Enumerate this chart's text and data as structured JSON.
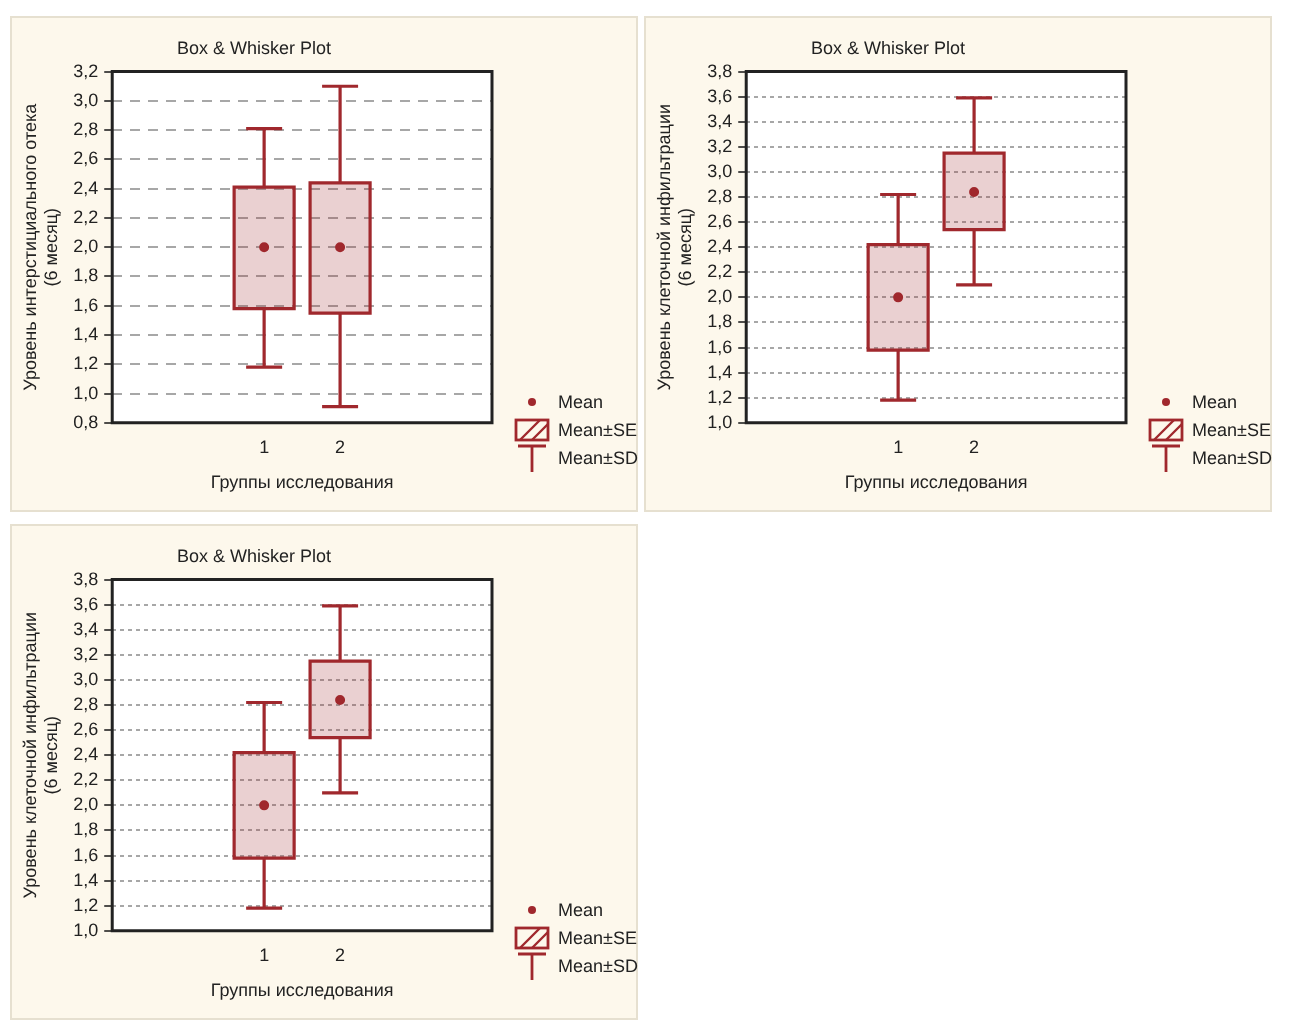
{
  "chart_data": [
    {
      "type": "box",
      "title": "Box & Whisker Plot",
      "xlabel": "Группы исследования",
      "ylabel": "Уровень интерстициального отека (6 месяц)",
      "categories": [
        "1",
        "2"
      ],
      "color": "#a0282d",
      "boxes": [
        {
          "low": 1.18,
          "q1": 1.58,
          "q3": 2.41,
          "high": 2.81,
          "mean": 2.0
        },
        {
          "low": 0.91,
          "q1": 1.55,
          "q3": 2.44,
          "high": 3.1,
          "mean": 2.0
        }
      ],
      "ylim": [
        0.8,
        3.2
      ],
      "yticks": [
        {
          "value": 0.8,
          "label": "0,8"
        },
        {
          "value": 1.0,
          "label": "1,0"
        },
        {
          "value": 1.2,
          "label": "1,2"
        },
        {
          "value": 1.4,
          "label": "1,4"
        },
        {
          "value": 1.6,
          "label": "1,6"
        },
        {
          "value": 1.8,
          "label": "1,8"
        },
        {
          "value": 2.0,
          "label": "2,0"
        },
        {
          "value": 2.2,
          "label": "2,2"
        },
        {
          "value": 2.4,
          "label": "2,4"
        },
        {
          "value": 2.6,
          "label": "2,6"
        },
        {
          "value": 2.8,
          "label": "2,8"
        },
        {
          "value": 3.0,
          "label": "3,0"
        },
        {
          "value": 3.2,
          "label": "3,2"
        }
      ],
      "grid": "y",
      "line_style": "dashed",
      "annotations": [
        "Mean",
        "Mean±SE",
        "Mean±SD"
      ]
    },
    {
      "type": "box",
      "title": "Box & Whisker Plot",
      "xlabel": "Группы исследования",
      "ylabel": "Уровень клеточной инфильтрации (6 месяц)",
      "categories": [
        "1",
        "2"
      ],
      "color": "#a0282d",
      "boxes": [
        {
          "low": 1.18,
          "q1": 1.58,
          "q3": 2.42,
          "high": 2.82,
          "mean": 2.0
        },
        {
          "low": 2.1,
          "q1": 2.54,
          "q3": 3.15,
          "high": 3.59,
          "mean": 2.84
        }
      ],
      "ylim": [
        1.0,
        3.8
      ],
      "yticks": [
        {
          "value": 1.0,
          "label": "1,0"
        },
        {
          "value": 1.2,
          "label": "1,2"
        },
        {
          "value": 1.4,
          "label": "1,4"
        },
        {
          "value": 1.6,
          "label": "1,6"
        },
        {
          "value": 1.8,
          "label": "1,8"
        },
        {
          "value": 2.0,
          "label": "2,0"
        },
        {
          "value": 2.2,
          "label": "2,2"
        },
        {
          "value": 2.4,
          "label": "2,4"
        },
        {
          "value": 2.6,
          "label": "2,6"
        },
        {
          "value": 2.8,
          "label": "2,8"
        },
        {
          "value": 3.0,
          "label": "3,0"
        },
        {
          "value": 3.2,
          "label": "3,2"
        },
        {
          "value": 3.4,
          "label": "3,4"
        },
        {
          "value": 3.6,
          "label": "3,6"
        },
        {
          "value": 3.8,
          "label": "3,8"
        }
      ],
      "grid": "y",
      "line_style": "dotted",
      "annotations": [
        "Mean",
        "Mean±SE",
        "Mean±SD"
      ]
    },
    {
      "type": "box",
      "title": "Box & Whisker Plot",
      "xlabel": "Группы исследования",
      "ylabel": "Уровень клеточной инфильтрации (6 месяц)",
      "categories": [
        "1",
        "2"
      ],
      "color": "#a0282d",
      "boxes": [
        {
          "low": 1.18,
          "q1": 1.58,
          "q3": 2.42,
          "high": 2.82,
          "mean": 2.0
        },
        {
          "low": 2.1,
          "q1": 2.54,
          "q3": 3.15,
          "high": 3.59,
          "mean": 2.84
        }
      ],
      "ylim": [
        1.0,
        3.8
      ],
      "yticks": [
        {
          "value": 1.0,
          "label": "1,0"
        },
        {
          "value": 1.2,
          "label": "1,2"
        },
        {
          "value": 1.4,
          "label": "1,4"
        },
        {
          "value": 1.6,
          "label": "1,6"
        },
        {
          "value": 1.8,
          "label": "1,8"
        },
        {
          "value": 2.0,
          "label": "2,0"
        },
        {
          "value": 2.2,
          "label": "2,2"
        },
        {
          "value": 2.4,
          "label": "2,4"
        },
        {
          "value": 2.6,
          "label": "2,6"
        },
        {
          "value": 2.8,
          "label": "2,8"
        },
        {
          "value": 3.0,
          "label": "3,0"
        },
        {
          "value": 3.2,
          "label": "3,2"
        },
        {
          "value": 3.4,
          "label": "3,4"
        },
        {
          "value": 3.6,
          "label": "3,6"
        },
        {
          "value": 3.8,
          "label": "3,8"
        }
      ],
      "grid": "y",
      "line_style": "dotted",
      "annotations": [
        "Mean",
        "Mean±SE",
        "Mean±SD"
      ]
    }
  ]
}
